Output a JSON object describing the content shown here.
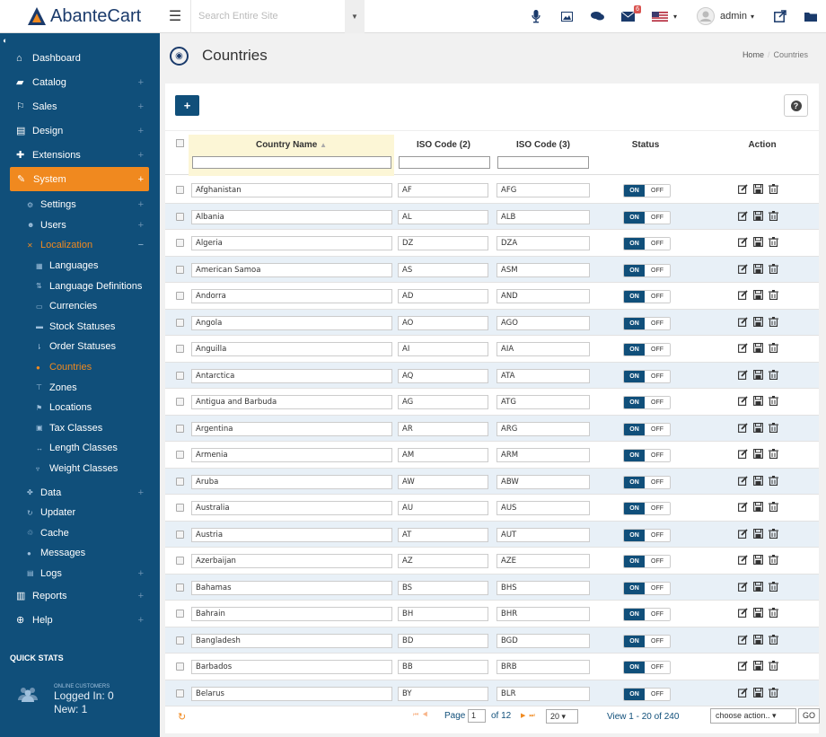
{
  "brand": {
    "name": "AbanteCart"
  },
  "search": {
    "placeholder": "Search Entire Site"
  },
  "topbar": {
    "mail_badge": "6",
    "user": "admin",
    "user_caret": "▾",
    "lang_caret": "▾"
  },
  "sidebar": {
    "dashboard": "Dashboard",
    "catalog": "Catalog",
    "sales": "Sales",
    "design": "Design",
    "extensions": "Extensions",
    "system": "System",
    "settings": "Settings",
    "users": "Users",
    "localization": "Localization",
    "languages": "Languages",
    "language_definitions": "Language Definitions",
    "currencies": "Currencies",
    "stock_statuses": "Stock Statuses",
    "order_statuses": "Order Statuses",
    "countries": "Countries",
    "zones": "Zones",
    "locations": "Locations",
    "tax_classes": "Tax Classes",
    "length_classes": "Length Classes",
    "weight_classes": "Weight Classes",
    "data": "Data",
    "updater": "Updater",
    "cache": "Cache",
    "messages": "Messages",
    "logs": "Logs",
    "reports": "Reports",
    "help": "Help",
    "plus": "+",
    "minus": "−"
  },
  "quick_stats": {
    "title": "QUICK STATS",
    "online_label": "ONLINE CUSTOMERS",
    "logged_in": "Logged In: 0",
    "new": "New: 1"
  },
  "page": {
    "title": "Countries"
  },
  "breadcrumb": {
    "home": "Home",
    "sep": "/",
    "current": "Countries"
  },
  "toolbar": {
    "add": "+",
    "help": "?"
  },
  "grid": {
    "headers": {
      "name": "Country Name",
      "iso2": "ISO Code (2)",
      "iso3": "ISO Code (3)",
      "status": "Status",
      "action": "Action"
    },
    "toggle_on": "ON",
    "toggle_off": "OFF",
    "rows": [
      {
        "name": "Afghanistan",
        "iso2": "AF",
        "iso3": "AFG"
      },
      {
        "name": "Albania",
        "iso2": "AL",
        "iso3": "ALB"
      },
      {
        "name": "Algeria",
        "iso2": "DZ",
        "iso3": "DZA"
      },
      {
        "name": "American Samoa",
        "iso2": "AS",
        "iso3": "ASM"
      },
      {
        "name": "Andorra",
        "iso2": "AD",
        "iso3": "AND"
      },
      {
        "name": "Angola",
        "iso2": "AO",
        "iso3": "AGO"
      },
      {
        "name": "Anguilla",
        "iso2": "AI",
        "iso3": "AIA"
      },
      {
        "name": "Antarctica",
        "iso2": "AQ",
        "iso3": "ATA"
      },
      {
        "name": "Antigua and Barbuda",
        "iso2": "AG",
        "iso3": "ATG"
      },
      {
        "name": "Argentina",
        "iso2": "AR",
        "iso3": "ARG"
      },
      {
        "name": "Armenia",
        "iso2": "AM",
        "iso3": "ARM"
      },
      {
        "name": "Aruba",
        "iso2": "AW",
        "iso3": "ABW"
      },
      {
        "name": "Australia",
        "iso2": "AU",
        "iso3": "AUS"
      },
      {
        "name": "Austria",
        "iso2": "AT",
        "iso3": "AUT"
      },
      {
        "name": "Azerbaijan",
        "iso2": "AZ",
        "iso3": "AZE"
      },
      {
        "name": "Bahamas",
        "iso2": "BS",
        "iso3": "BHS"
      },
      {
        "name": "Bahrain",
        "iso2": "BH",
        "iso3": "BHR"
      },
      {
        "name": "Bangladesh",
        "iso2": "BD",
        "iso3": "BGD"
      },
      {
        "name": "Barbados",
        "iso2": "BB",
        "iso3": "BRB"
      },
      {
        "name": "Belarus",
        "iso2": "BY",
        "iso3": "BLR"
      }
    ]
  },
  "pager": {
    "page_label": "Page",
    "page": "1",
    "of_label": "of 12",
    "page_size": "20 ▾",
    "view_text": "View 1 - 20 of 240",
    "bulk_action": "choose action..  ▾",
    "go": "GO"
  },
  "colors": {
    "sidebar": "#104f7a",
    "accent": "#f0891f",
    "row_alt": "#e8f0f7"
  }
}
